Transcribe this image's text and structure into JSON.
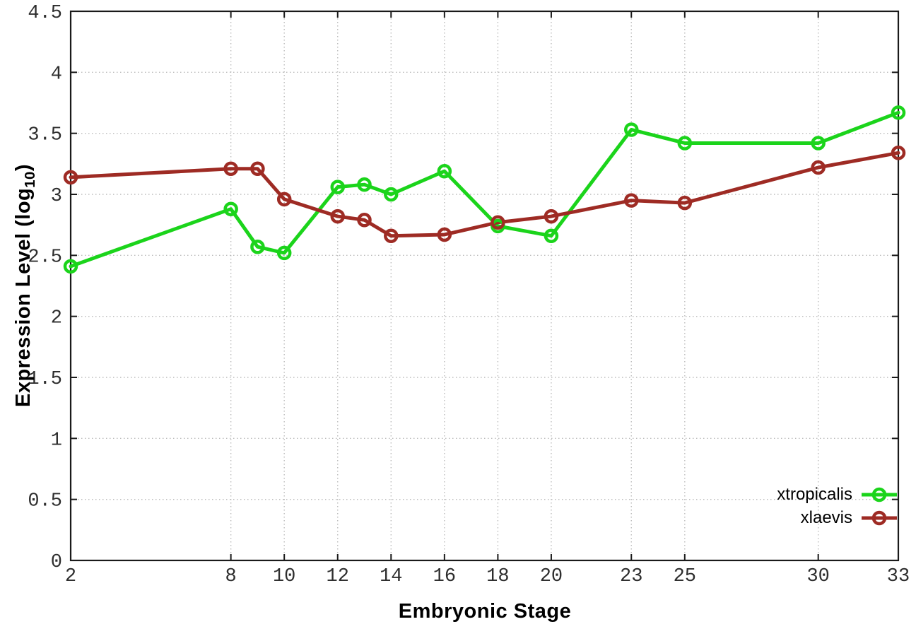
{
  "chart_data": {
    "type": "line",
    "title": "",
    "xlabel": "Embryonic Stage",
    "ylabel": "Expression Level (log10)",
    "ylabel_parts": {
      "prefix": "Expression Level (log",
      "sub": "10",
      "suffix": ")"
    },
    "x": [
      2,
      8,
      9,
      10,
      12,
      13,
      14,
      16,
      18,
      20,
      23,
      25,
      30,
      33
    ],
    "series": [
      {
        "name": "xtropicalis",
        "color": "#1bd41b",
        "values": [
          2.41,
          2.88,
          2.57,
          2.52,
          3.06,
          3.08,
          3.0,
          3.19,
          2.74,
          2.66,
          3.53,
          3.42,
          3.42,
          3.67
        ]
      },
      {
        "name": "xlaevis",
        "color": "#9e2b24",
        "values": [
          3.14,
          3.21,
          3.21,
          2.96,
          2.82,
          2.79,
          2.66,
          2.67,
          2.77,
          2.82,
          2.95,
          2.93,
          3.22,
          3.34
        ]
      }
    ],
    "x_ticks": [
      {
        "value": 2,
        "label": "2"
      },
      {
        "value": 8,
        "label": "8"
      },
      {
        "value": 10,
        "label": "10"
      },
      {
        "value": 12,
        "label": "12"
      },
      {
        "value": 14,
        "label": "14"
      },
      {
        "value": 16,
        "label": "16"
      },
      {
        "value": 18,
        "label": "18"
      },
      {
        "value": 20,
        "label": "20"
      },
      {
        "value": 23,
        "label": "23"
      },
      {
        "value": 25,
        "label": "25"
      },
      {
        "value": 30,
        "label": "30"
      },
      {
        "value": 33,
        "label": "33"
      }
    ],
    "y_ticks": [
      {
        "value": 0,
        "label": "0"
      },
      {
        "value": 0.5,
        "label": "0.5"
      },
      {
        "value": 1,
        "label": "1"
      },
      {
        "value": 1.5,
        "label": "1.5"
      },
      {
        "value": 2,
        "label": "2"
      },
      {
        "value": 2.5,
        "label": "2.5"
      },
      {
        "value": 3,
        "label": "3"
      },
      {
        "value": 3.5,
        "label": "3.5"
      },
      {
        "value": 4,
        "label": "4"
      },
      {
        "value": 4.5,
        "label": "4.5"
      }
    ],
    "xlim": [
      2,
      33
    ],
    "ylim": [
      0,
      4.5
    ],
    "grid": true,
    "legend_position": "inside-bottom-right",
    "legend": [
      {
        "label": "xtropicalis",
        "color": "#1bd41b"
      },
      {
        "label": "xlaevis",
        "color": "#9e2b24"
      }
    ]
  },
  "style": {
    "grid_color": "#bcbcbc",
    "border_color": "#1a1a1a",
    "tick_label_color": "#2e2e2e",
    "background": "#ffffff"
  }
}
